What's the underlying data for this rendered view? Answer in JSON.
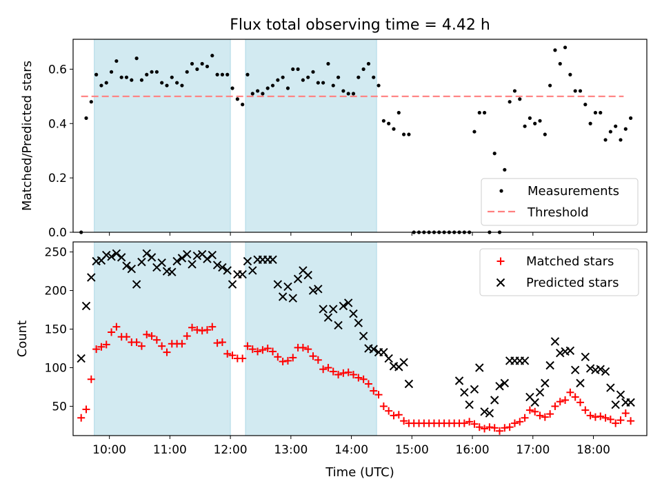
{
  "title": "Flux total observing time = 4.42 h",
  "colors": {
    "band": "#add8e6",
    "threshold": "#ff7f7f",
    "matched": "#ff0000",
    "predicted": "#000000",
    "measurement": "#000000"
  },
  "chart_data": [
    {
      "type": "scatter",
      "ylabel": "Matched/Predicted stars",
      "xlim": [
        "09:24",
        "18:53"
      ],
      "ylim": [
        0,
        0.71
      ],
      "ytick_values": [
        0,
        0.2,
        0.4,
        0.6
      ],
      "ytick_labels": [
        "0.0",
        "0.2",
        "0.4",
        "0.6"
      ],
      "shaded_intervals": [
        [
          "09:45",
          "12:00"
        ],
        [
          "12:15",
          "14:25"
        ]
      ],
      "threshold": {
        "name": "Threshold",
        "value": 0.5,
        "x_range": [
          "09:32",
          "18:30"
        ],
        "style": "dashed"
      },
      "legend": {
        "position": "lower-right",
        "entries": [
          "Measurements",
          "Threshold"
        ]
      },
      "series": [
        {
          "name": "Measurements",
          "marker": "dot",
          "x": [
            "09:32",
            "09:37",
            "09:42",
            "09:47",
            "09:52",
            "09:57",
            "10:02",
            "10:07",
            "10:12",
            "10:17",
            "10:22",
            "10:27",
            "10:32",
            "10:37",
            "10:42",
            "10:47",
            "10:52",
            "10:57",
            "11:02",
            "11:07",
            "11:12",
            "11:17",
            "11:22",
            "11:27",
            "11:32",
            "11:37",
            "11:42",
            "11:47",
            "11:52",
            "11:57",
            "12:02",
            "12:07",
            "12:12",
            "12:17",
            "12:22",
            "12:27",
            "12:32",
            "12:37",
            "12:42",
            "12:47",
            "12:52",
            "12:57",
            "13:02",
            "13:07",
            "13:12",
            "13:17",
            "13:22",
            "13:27",
            "13:32",
            "13:37",
            "13:42",
            "13:47",
            "13:52",
            "13:57",
            "14:02",
            "14:07",
            "14:12",
            "14:17",
            "14:22",
            "14:27",
            "14:32",
            "14:37",
            "14:42",
            "14:47",
            "14:52",
            "14:57",
            "15:02",
            "15:07",
            "15:12",
            "15:17",
            "15:22",
            "15:27",
            "15:32",
            "15:37",
            "15:42",
            "15:47",
            "15:52",
            "15:57",
            "16:02",
            "16:07",
            "16:12",
            "16:17",
            "16:22",
            "16:27",
            "16:32",
            "16:37",
            "16:42",
            "16:47",
            "16:52",
            "16:57",
            "17:02",
            "17:07",
            "17:12",
            "17:17",
            "17:22",
            "17:27",
            "17:32",
            "17:37",
            "17:42",
            "17:47",
            "17:52",
            "17:57",
            "18:02",
            "18:07",
            "18:12",
            "18:17",
            "18:22",
            "18:27",
            "18:32",
            "18:37"
          ],
          "y": [
            0.0,
            0.42,
            0.48,
            0.58,
            0.54,
            0.55,
            0.59,
            0.63,
            0.57,
            0.57,
            0.56,
            0.64,
            0.56,
            0.58,
            0.59,
            0.59,
            0.55,
            0.54,
            0.57,
            0.55,
            0.54,
            0.59,
            0.62,
            0.6,
            0.62,
            0.61,
            0.65,
            0.58,
            0.58,
            0.58,
            0.53,
            0.49,
            0.47,
            0.58,
            0.51,
            0.52,
            0.51,
            0.53,
            0.54,
            0.56,
            0.57,
            0.53,
            0.6,
            0.6,
            0.56,
            0.57,
            0.59,
            0.55,
            0.55,
            0.62,
            0.54,
            0.57,
            0.52,
            0.51,
            0.51,
            0.57,
            0.6,
            0.62,
            0.57,
            0.54,
            0.41,
            0.4,
            0.38,
            0.44,
            0.36,
            0.36,
            0.0,
            0.0,
            0.0,
            0.0,
            0.0,
            0.0,
            0.0,
            0.0,
            0.0,
            0.0,
            0.0,
            0.0,
            0.37,
            0.44,
            0.44,
            0.0,
            0.29,
            0.0,
            0.23,
            0.48,
            0.52,
            0.49,
            0.39,
            0.42,
            0.4,
            0.41,
            0.36,
            0.54,
            0.67,
            0.62,
            0.68,
            0.58,
            0.52,
            0.52,
            0.47,
            0.4,
            0.44,
            0.44,
            0.34,
            0.37,
            0.39,
            0.34,
            0.38,
            0.42
          ]
        }
      ]
    },
    {
      "type": "scatter",
      "xlabel": "Time (UTC)",
      "ylabel": "Count",
      "xlim": [
        "09:24",
        "18:53"
      ],
      "ylim": [
        12,
        263
      ],
      "ytick_values": [
        50,
        100,
        150,
        200,
        250
      ],
      "ytick_labels": [
        "50",
        "100",
        "150",
        "200",
        "250"
      ],
      "xtick_values": [
        "10:00",
        "11:00",
        "12:00",
        "13:00",
        "14:00",
        "15:00",
        "16:00",
        "17:00",
        "18:00"
      ],
      "xtick_labels": [
        "10:00",
        "11:00",
        "12:00",
        "13:00",
        "14:00",
        "15:00",
        "16:00",
        "17:00",
        "18:00"
      ],
      "shaded_intervals": [
        [
          "09:45",
          "12:00"
        ],
        [
          "12:15",
          "14:25"
        ]
      ],
      "legend": {
        "position": "top-right",
        "entries": [
          "Matched stars",
          "Predicted stars"
        ]
      },
      "series": [
        {
          "name": "Matched stars",
          "marker": "plus",
          "x": [
            "09:32",
            "09:37",
            "09:42",
            "09:47",
            "09:52",
            "09:57",
            "10:02",
            "10:07",
            "10:12",
            "10:17",
            "10:22",
            "10:27",
            "10:32",
            "10:37",
            "10:42",
            "10:47",
            "10:52",
            "10:57",
            "11:02",
            "11:07",
            "11:12",
            "11:17",
            "11:22",
            "11:27",
            "11:32",
            "11:37",
            "11:42",
            "11:47",
            "11:52",
            "11:57",
            "12:02",
            "12:07",
            "12:12",
            "12:17",
            "12:22",
            "12:27",
            "12:32",
            "12:37",
            "12:42",
            "12:47",
            "12:52",
            "12:57",
            "13:02",
            "13:07",
            "13:12",
            "13:17",
            "13:22",
            "13:27",
            "13:32",
            "13:37",
            "13:42",
            "13:47",
            "13:52",
            "13:57",
            "14:02",
            "14:07",
            "14:12",
            "14:17",
            "14:22",
            "14:27",
            "14:32",
            "14:37",
            "14:42",
            "14:47",
            "14:52",
            "14:57",
            "15:02",
            "15:07",
            "15:12",
            "15:17",
            "15:22",
            "15:27",
            "15:32",
            "15:37",
            "15:42",
            "15:47",
            "15:52",
            "15:57",
            "16:02",
            "16:07",
            "16:12",
            "16:17",
            "16:22",
            "16:27",
            "16:32",
            "16:37",
            "16:42",
            "16:47",
            "16:52",
            "16:57",
            "17:02",
            "17:07",
            "17:12",
            "17:17",
            "17:22",
            "17:27",
            "17:32",
            "17:37",
            "17:42",
            "17:47",
            "17:52",
            "17:57",
            "18:02",
            "18:07",
            "18:12",
            "18:17",
            "18:22",
            "18:27",
            "18:32",
            "18:37"
          ],
          "y": [
            35,
            46,
            85,
            124,
            127,
            130,
            146,
            153,
            140,
            140,
            133,
            133,
            128,
            143,
            141,
            136,
            128,
            120,
            131,
            131,
            131,
            141,
            152,
            149,
            148,
            149,
            153,
            132,
            133,
            118,
            116,
            112,
            112,
            128,
            124,
            121,
            123,
            125,
            121,
            114,
            108,
            109,
            113,
            126,
            126,
            124,
            115,
            110,
            98,
            100,
            95,
            91,
            93,
            94,
            91,
            87,
            85,
            79,
            70,
            65,
            50,
            44,
            38,
            39,
            31,
            28,
            28,
            28,
            28,
            28,
            28,
            28,
            28,
            28,
            28,
            28,
            28,
            30,
            27,
            23,
            21,
            23,
            22,
            18,
            22,
            23,
            28,
            30,
            35,
            45,
            43,
            38,
            36,
            40,
            50,
            56,
            58,
            68,
            62,
            55,
            45,
            38,
            36,
            37,
            35,
            33,
            28,
            32,
            41,
            31
          ]
        },
        {
          "name": "Predicted stars",
          "marker": "x",
          "x": [
            "09:32",
            "09:37",
            "09:42",
            "09:47",
            "09:52",
            "09:57",
            "10:02",
            "10:07",
            "10:12",
            "10:17",
            "10:22",
            "10:27",
            "10:32",
            "10:37",
            "10:42",
            "10:47",
            "10:52",
            "10:57",
            "11:02",
            "11:07",
            "11:12",
            "11:17",
            "11:22",
            "11:27",
            "11:32",
            "11:37",
            "11:42",
            "11:47",
            "11:52",
            "11:57",
            "12:02",
            "12:07",
            "12:12",
            "12:17",
            "12:22",
            "12:27",
            "12:32",
            "12:37",
            "12:42",
            "12:47",
            "12:52",
            "12:57",
            "13:02",
            "13:07",
            "13:12",
            "13:17",
            "13:22",
            "13:27",
            "13:32",
            "13:37",
            "13:42",
            "13:47",
            "13:52",
            "13:57",
            "14:02",
            "14:07",
            "14:12",
            "14:17",
            "14:22",
            "14:27",
            "14:32",
            "14:37",
            "14:42",
            "14:47",
            "14:52",
            "14:57",
            "15:47",
            "15:52",
            "15:57",
            "16:02",
            "16:07",
            "16:12",
            "16:17",
            "16:22",
            "16:27",
            "16:32",
            "16:37",
            "16:42",
            "16:47",
            "16:52",
            "16:57",
            "17:02",
            "17:07",
            "17:12",
            "17:17",
            "17:22",
            "17:27",
            "17:32",
            "17:37",
            "17:42",
            "17:47",
            "17:52",
            "17:57",
            "18:02",
            "18:07",
            "18:12",
            "18:17",
            "18:22",
            "18:27",
            "18:32",
            "18:37"
          ],
          "y": [
            112,
            180,
            217,
            238,
            239,
            246,
            244,
            248,
            243,
            232,
            228,
            208,
            237,
            248,
            243,
            230,
            236,
            225,
            224,
            238,
            242,
            247,
            234,
            245,
            247,
            241,
            246,
            233,
            230,
            226,
            208,
            221,
            221,
            238,
            226,
            240,
            240,
            240,
            240,
            208,
            192,
            205,
            190,
            215,
            226,
            220,
            200,
            202,
            176,
            165,
            176,
            155,
            180,
            184,
            170,
            158,
            141,
            125,
            124,
            120,
            120,
            112,
            102,
            101,
            107,
            79,
            83,
            68,
            52,
            72,
            100,
            43,
            41,
            58,
            76,
            80,
            109,
            109,
            109,
            109,
            62,
            55,
            68,
            80,
            103,
            134,
            119,
            121,
            122,
            97,
            80,
            114,
            99,
            97,
            98,
            95,
            74,
            52,
            65,
            55,
            55
          ]
        }
      ]
    }
  ]
}
